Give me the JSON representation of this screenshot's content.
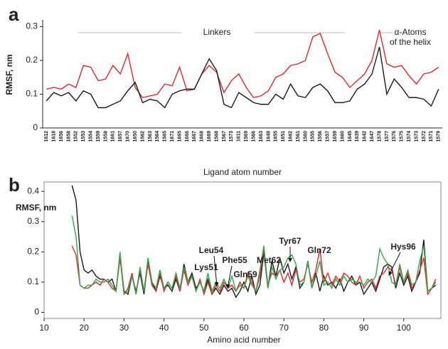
{
  "chart_data": [
    {
      "type": "line",
      "panel": "a",
      "ylabel": "RMSF, nm",
      "xlabel": "Ligand atom number",
      "annotations": [
        "Linkers",
        "α-Atoms",
        "of the helix"
      ],
      "categories": [
        "1612",
        "1618",
        "1656",
        "1658",
        "1552",
        "1553",
        "1554",
        "1559",
        "1558",
        "1661",
        "1657",
        "1670",
        "1650",
        "1562",
        "1563",
        "1564",
        "1565",
        "1671",
        "1665",
        "1666",
        "1667",
        "1668",
        "1669",
        "1568",
        "1567",
        "1573",
        "1611",
        "1569",
        "1566",
        "1663",
        "1648",
        "1655",
        "1651",
        "1662",
        "1561",
        "1560",
        "1555",
        "1556",
        "1557",
        "1659",
        "1660",
        "1645",
        "1639",
        "1642",
        "1647",
        "1578",
        "1577",
        "1576",
        "1575",
        "1574",
        "1573",
        "1572",
        "1571",
        "1579"
      ],
      "series": [
        {
          "color": "#e8262a",
          "values": [
            0.115,
            0.12,
            0.115,
            0.13,
            0.12,
            0.185,
            0.18,
            0.14,
            0.145,
            0.185,
            0.16,
            0.22,
            0.12,
            0.09,
            0.095,
            0.1,
            0.13,
            0.125,
            0.18,
            0.11,
            0.115,
            0.16,
            0.185,
            0.165,
            0.105,
            0.14,
            0.16,
            0.12,
            0.09,
            0.095,
            0.11,
            0.15,
            0.16,
            0.185,
            0.19,
            0.2,
            0.27,
            0.28,
            0.22,
            0.165,
            0.15,
            0.12,
            0.14,
            0.16,
            0.2,
            0.29,
            0.19,
            0.18,
            0.185,
            0.155,
            0.13,
            0.16,
            0.165,
            0.18
          ]
        },
        {
          "color": "#1a1a1a",
          "values": [
            0.08,
            0.105,
            0.095,
            0.105,
            0.08,
            0.11,
            0.1,
            0.06,
            0.06,
            0.07,
            0.08,
            0.11,
            0.135,
            0.075,
            0.085,
            0.08,
            0.06,
            0.1,
            0.11,
            0.115,
            0.115,
            0.16,
            0.205,
            0.17,
            0.07,
            0.06,
            0.105,
            0.09,
            0.075,
            0.07,
            0.07,
            0.1,
            0.085,
            0.13,
            0.095,
            0.09,
            0.12,
            0.13,
            0.11,
            0.075,
            0.075,
            0.08,
            0.115,
            0.13,
            0.16,
            0.24,
            0.1,
            0.145,
            0.12,
            0.09,
            0.09,
            0.085,
            0.065,
            0.115
          ]
        }
      ],
      "ylim": [
        0,
        0.32
      ],
      "yticks": [
        0,
        0.1,
        0.2,
        0.3
      ]
    },
    {
      "type": "line",
      "panel": "b",
      "ylabel": "RMSF, nm",
      "xlabel": "Amino acid number",
      "annotations": [
        "Leu54",
        "Lys51",
        "Phe55",
        "Gln59",
        "Met62",
        "Tyr67",
        "Gln72",
        "Hys96"
      ],
      "x": [
        17,
        18,
        19,
        20,
        21,
        22,
        23,
        24,
        25,
        26,
        27,
        28,
        29,
        30,
        31,
        32,
        33,
        34,
        35,
        36,
        37,
        38,
        39,
        40,
        41,
        42,
        43,
        44,
        45,
        46,
        47,
        48,
        49,
        50,
        51,
        52,
        53,
        54,
        55,
        56,
        57,
        58,
        59,
        60,
        61,
        62,
        63,
        64,
        65,
        66,
        67,
        68,
        69,
        70,
        71,
        72,
        73,
        74,
        75,
        76,
        77,
        78,
        79,
        80,
        81,
        82,
        83,
        84,
        85,
        86,
        87,
        88,
        89,
        90,
        91,
        92,
        93,
        94,
        95,
        96,
        97,
        98,
        99,
        100,
        101,
        102,
        103,
        104,
        105,
        106,
        107,
        108
      ],
      "series": [
        {
          "color": "#1a1a1a",
          "values": [
            0.42,
            0.37,
            0.2,
            0.14,
            0.13,
            0.14,
            0.12,
            0.11,
            0.11,
            0.1,
            0.11,
            0.07,
            0.19,
            0.07,
            0.06,
            0.12,
            0.07,
            0.13,
            0.06,
            0.17,
            0.1,
            0.07,
            0.12,
            0.08,
            0.09,
            0.07,
            0.11,
            0.07,
            0.16,
            0.1,
            0.13,
            0.08,
            0.1,
            0.07,
            0.11,
            0.06,
            0.08,
            0.06,
            0.09,
            0.07,
            0.08,
            0.05,
            0.07,
            0.1,
            0.07,
            0.12,
            0.06,
            0.09,
            0.2,
            0.08,
            0.17,
            0.12,
            0.18,
            0.13,
            0.16,
            0.11,
            0.15,
            0.08,
            0.1,
            0.17,
            0.08,
            0.13,
            0.07,
            0.12,
            0.09,
            0.1,
            0.08,
            0.11,
            0.07,
            0.1,
            0.12,
            0.09,
            0.1,
            0.06,
            0.08,
            0.1,
            0.07,
            0.11,
            0.15,
            0.16,
            0.15,
            0.08,
            0.13,
            0.09,
            0.12,
            0.07,
            0.1,
            0.13,
            0.24,
            0.07,
            0.08,
            0.09
          ]
        },
        {
          "color": "#e8262a",
          "values": [
            0.22,
            0.19,
            0.09,
            0.08,
            0.08,
            0.09,
            0.1,
            0.09,
            0.11,
            0.1,
            0.08,
            0.07,
            0.18,
            0.06,
            0.08,
            0.13,
            0.06,
            0.14,
            0.07,
            0.16,
            0.09,
            0.07,
            0.13,
            0.07,
            0.1,
            0.08,
            0.12,
            0.07,
            0.14,
            0.09,
            0.12,
            0.07,
            0.11,
            0.06,
            0.1,
            0.06,
            0.09,
            0.07,
            0.1,
            0.08,
            0.09,
            0.07,
            0.1,
            0.08,
            0.13,
            0.1,
            0.07,
            0.12,
            0.21,
            0.09,
            0.13,
            0.12,
            0.14,
            0.1,
            0.13,
            0.09,
            0.14,
            0.1,
            0.11,
            0.16,
            0.1,
            0.14,
            0.21,
            0.1,
            0.13,
            0.09,
            0.12,
            0.1,
            0.13,
            0.12,
            0.1,
            0.09,
            0.12,
            0.08,
            0.1,
            0.11,
            0.08,
            0.12,
            0.13,
            0.15,
            0.14,
            0.09,
            0.15,
            0.1,
            0.13,
            0.08,
            0.1,
            0.14,
            0.18,
            0.06,
            0.08,
            0.11
          ]
        },
        {
          "color": "#2ea84a",
          "values": [
            0.32,
            0.25,
            0.09,
            0.08,
            0.09,
            0.09,
            0.11,
            0.1,
            0.1,
            0.11,
            0.09,
            0.07,
            0.2,
            0.06,
            0.07,
            0.12,
            0.06,
            0.15,
            0.07,
            0.18,
            0.1,
            0.08,
            0.14,
            0.08,
            0.1,
            0.08,
            0.13,
            0.08,
            0.15,
            0.1,
            0.12,
            0.07,
            0.1,
            0.07,
            0.13,
            0.07,
            0.1,
            0.08,
            0.11,
            0.08,
            0.12,
            0.07,
            0.09,
            0.08,
            0.12,
            0.09,
            0.07,
            0.14,
            0.22,
            0.08,
            0.15,
            0.11,
            0.14,
            0.15,
            0.18,
            0.19,
            0.16,
            0.09,
            0.1,
            0.17,
            0.08,
            0.12,
            0.17,
            0.09,
            0.1,
            0.08,
            0.11,
            0.09,
            0.12,
            0.1,
            0.11,
            0.1,
            0.1,
            0.09,
            0.11,
            0.1,
            0.12,
            0.21,
            0.18,
            0.16,
            0.1,
            0.09,
            0.16,
            0.1,
            0.14,
            0.09,
            0.1,
            0.17,
            0.22,
            0.07,
            0.08,
            0.1
          ]
        }
      ],
      "xlim": [
        10,
        110
      ],
      "xticks": [
        10,
        20,
        30,
        40,
        50,
        60,
        70,
        80,
        90,
        100
      ],
      "ylim": [
        -0.02,
        0.45
      ],
      "yticks": [
        0,
        0.1,
        0.2,
        0.3,
        0.4
      ]
    }
  ]
}
